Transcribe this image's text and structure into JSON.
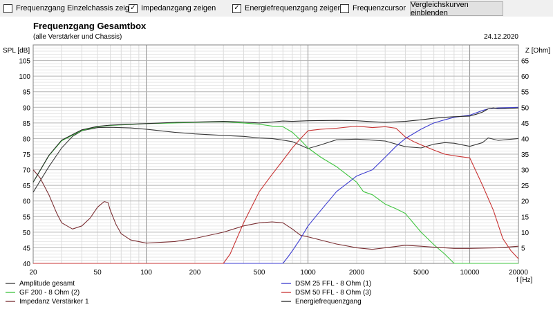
{
  "toolbar": {
    "checkboxes": [
      {
        "label": "Frequenzgang Einzelchassis zeigen",
        "checked": false
      },
      {
        "label": "Impedanzgang zeigen",
        "checked": true
      },
      {
        "label": "Energiefrequenzgang zeigen",
        "checked": true
      },
      {
        "label": "Frequenzcursor",
        "checked": false
      }
    ],
    "button_label": "Vergleichskurven einblenden"
  },
  "chart_data": {
    "type": "line",
    "title": "Frequenzgang Gesamtbox",
    "subtitle": "(alle Verstärker und Chassis)",
    "date": "24.12.2020",
    "ylabel": "SPL [dB]",
    "y2label": "Z [Ohm]",
    "xlabel": "f [Hz]",
    "x_scale": "log",
    "xlim": [
      20,
      20000
    ],
    "ylim": [
      40,
      110
    ],
    "y2lim": [
      0,
      70
    ],
    "x_ticks": [
      20,
      50,
      100,
      200,
      500,
      1000,
      2000,
      5000,
      10000,
      20000
    ],
    "x_tick_labels": [
      "20",
      "50",
      "100",
      "200",
      "500",
      "1000",
      "2000",
      "5000",
      "10000",
      "20000"
    ],
    "y_ticks": [
      40,
      45,
      50,
      55,
      60,
      65,
      70,
      75,
      80,
      85,
      90,
      95,
      100,
      105
    ],
    "y_tick_labels": [
      "40",
      "45",
      "50",
      "55",
      "60",
      "65",
      "70",
      "75",
      "80",
      "85",
      "90",
      "95",
      "100",
      "105"
    ],
    "y2_ticks": [
      5,
      10,
      15,
      20,
      25,
      30,
      35,
      40,
      45,
      50,
      55,
      60,
      65
    ],
    "y2_tick_labels": [
      "5",
      "10",
      "15",
      "20",
      "25",
      "30",
      "35",
      "40",
      "45",
      "50",
      "55",
      "60",
      "65"
    ],
    "grid": true,
    "legend_position": "bottom",
    "series": [
      {
        "name": "Amplitude gesamt",
        "axis": "left",
        "color": "#3a3a3a",
        "x": [
          20,
          25,
          30,
          35,
          40,
          50,
          60,
          80,
          100,
          150,
          200,
          300,
          400,
          500,
          600,
          700,
          800,
          1000,
          1200,
          1500,
          2000,
          2500,
          3000,
          4000,
          5000,
          6000,
          7000,
          8000,
          10000,
          12000,
          13000,
          15000,
          20000
        ],
        "y": [
          62.8,
          71,
          77,
          80.7,
          82.5,
          83.5,
          83.6,
          83.4,
          83,
          82,
          81.5,
          81,
          80.7,
          80.2,
          80,
          79.5,
          79,
          76.8,
          78,
          79.6,
          79.8,
          79.5,
          79.2,
          77.4,
          77,
          78.2,
          78.7,
          78.5,
          77.5,
          78.7,
          80.2,
          79.4,
          80
        ]
      },
      {
        "name": "GF 200 - 8 Ohm (2)",
        "axis": "left",
        "color": "#3fc43f",
        "x": [
          20,
          25,
          30,
          40,
          50,
          60,
          80,
          100,
          150,
          200,
          300,
          400,
          500,
          600,
          700,
          800,
          900,
          1000,
          1200,
          1500,
          2000,
          2200,
          2500,
          3000,
          3500,
          4000,
          5000,
          6000,
          7000,
          8000,
          20000
        ],
        "y": [
          66,
          74.5,
          79.3,
          82.6,
          83.8,
          84.2,
          84.5,
          84.8,
          85,
          85.2,
          85.4,
          85,
          84.6,
          84,
          83.8,
          82,
          79.5,
          77,
          74,
          71,
          66,
          63,
          62,
          59,
          57.5,
          56,
          50,
          46,
          43,
          40,
          40
        ]
      },
      {
        "name": "Impedanz Verstärker 1",
        "axis": "right",
        "color": "#7a2e32",
        "x": [
          20,
          22,
          25,
          28,
          30,
          35,
          40,
          45,
          50,
          55,
          58,
          60,
          65,
          70,
          80,
          100,
          150,
          200,
          300,
          400,
          500,
          600,
          700,
          800,
          900,
          1000,
          1500,
          2000,
          2500,
          3000,
          4000,
          5000,
          6000,
          8000,
          10000,
          15000,
          20000
        ],
        "y": [
          30,
          27.5,
          22,
          16,
          13,
          11,
          12,
          14.5,
          18,
          19.8,
          19.5,
          17,
          12.5,
          9.5,
          7.5,
          6.5,
          7,
          8,
          10,
          12,
          13,
          13.3,
          13,
          11,
          9,
          8.5,
          6.2,
          5,
          4.5,
          5,
          5.8,
          5.5,
          5.2,
          4.8,
          4.8,
          5,
          5.5
        ]
      },
      {
        "name": "DSM 25 FFL - 8 Ohm (1)",
        "axis": "left",
        "color": "#3c3cd0",
        "x": [
          20,
          700,
          750,
          800,
          900,
          1000,
          1200,
          1500,
          2000,
          2500,
          3000,
          3500,
          4000,
          5000,
          6000,
          7000,
          8000,
          10000,
          12000,
          13000,
          15000,
          20000
        ],
        "y": [
          40,
          40,
          42,
          44,
          48,
          52,
          57,
          63,
          68,
          70,
          74,
          77.5,
          80,
          83,
          85,
          86,
          86.8,
          87.5,
          89,
          89.5,
          89.8,
          90
        ]
      },
      {
        "name": "DSM 50 FFL - 8 Ohm (3)",
        "axis": "left",
        "color": "#c83434",
        "x": [
          20,
          300,
          330,
          400,
          500,
          600,
          700,
          800,
          900,
          1000,
          1200,
          1500,
          2000,
          2500,
          3000,
          3500,
          4000,
          4500,
          5000,
          6000,
          7000,
          8000,
          10000,
          12000,
          14000,
          16000,
          18000,
          20000
        ],
        "y": [
          40,
          40,
          43,
          53,
          63,
          68.5,
          73,
          77,
          80,
          82.5,
          83,
          83.3,
          84,
          83.5,
          83.8,
          83.3,
          80.5,
          79,
          78,
          76.3,
          75,
          74.5,
          73.8,
          65,
          57,
          48,
          44,
          41.5
        ]
      },
      {
        "name": "Energiefrequenzgang",
        "axis": "left",
        "color": "#2a2a2a",
        "x": [
          20,
          25,
          30,
          40,
          50,
          60,
          80,
          100,
          150,
          200,
          300,
          400,
          500,
          600,
          700,
          800,
          1000,
          1500,
          2000,
          2500,
          3000,
          4000,
          5000,
          6000,
          7000,
          8000,
          10000,
          11000,
          12000,
          13000,
          14000,
          15000,
          20000
        ],
        "y": [
          66,
          74.6,
          79.5,
          82.8,
          83.9,
          84.3,
          84.6,
          84.8,
          85.2,
          85.3,
          85.5,
          85.3,
          85,
          85.3,
          85.6,
          85.5,
          85.7,
          85.8,
          85.7,
          85.4,
          85.2,
          85.5,
          86,
          86.5,
          86.8,
          87,
          87.2,
          87.8,
          88.5,
          89.5,
          89.8,
          89.5,
          89.8
        ]
      }
    ]
  }
}
